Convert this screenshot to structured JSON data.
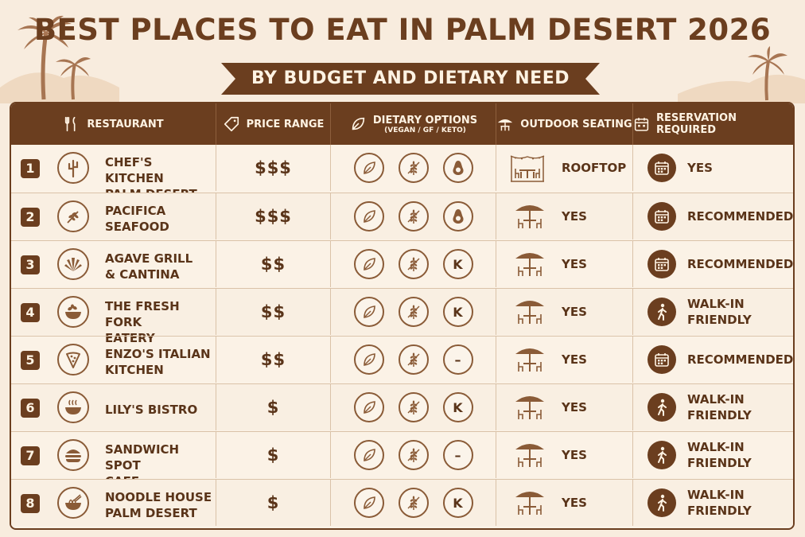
{
  "title": "BEST PLACES TO EAT IN PALM DESERT 2026",
  "subtitle": "BY BUDGET AND DIETARY NEED",
  "columns": {
    "restaurant": "RESTAURANT",
    "price": "PRICE RANGE",
    "dietary": "DIETARY OPTIONS",
    "dietary_sub": "(VEGAN / GF / KETO)",
    "outdoor": "OUTDOOR SEATING",
    "reservation": "RESERVATION REQUIRED"
  },
  "colors": {
    "brown": "#6b3e1f",
    "cream": "#f8ecde",
    "text": "#5a3419"
  },
  "rows": [
    {
      "num": "1",
      "name_1": "CHEF'S KITCHEN",
      "name_2": "PALM DESERT",
      "logo": "cactus-icon",
      "price": "$$$",
      "keto": "avocado",
      "keto_text": "",
      "outdoor_icon": "rooftop-icon",
      "outdoor": "ROOFTOP",
      "resv_icon": "calendar-icon",
      "resv_1": "YES",
      "resv_2": ""
    },
    {
      "num": "2",
      "name_1": "PACIFICA",
      "name_2": "SEAFOOD",
      "logo": "herb-icon",
      "price": "$$$",
      "keto": "avocado",
      "keto_text": "",
      "outdoor_icon": "umbrella-icon",
      "outdoor": "YES",
      "resv_icon": "calendar-icon",
      "resv_1": "RECOMMENDED",
      "resv_2": ""
    },
    {
      "num": "3",
      "name_1": "AGAVE GRILL",
      "name_2": "& CANTINA",
      "logo": "agave-icon",
      "price": "$$",
      "keto": "letter",
      "keto_text": "K",
      "outdoor_icon": "umbrella-icon",
      "outdoor": "YES",
      "resv_icon": "calendar-icon",
      "resv_1": "RECOMMENDED",
      "resv_2": ""
    },
    {
      "num": "4",
      "name_1": "THE FRESH FORK",
      "name_2": "EATERY",
      "logo": "salad-bowl-icon",
      "price": "$$",
      "keto": "letter",
      "keto_text": "K",
      "outdoor_icon": "umbrella-icon",
      "outdoor": "YES",
      "resv_icon": "walking-icon",
      "resv_1": "WALK-IN",
      "resv_2": "FRIENDLY"
    },
    {
      "num": "5",
      "name_1": "ENZO'S ITALIAN",
      "name_2": "KITCHEN",
      "logo": "pizza-icon",
      "price": "$$",
      "keto": "letter",
      "keto_text": "–",
      "outdoor_icon": "umbrella-icon",
      "outdoor": "YES",
      "resv_icon": "calendar-icon",
      "resv_1": "RECOMMENDED",
      "resv_2": ""
    },
    {
      "num": "6",
      "name_1": "LILY'S BISTRO",
      "name_2": "",
      "logo": "soup-bowl-icon",
      "price": "$",
      "keto": "letter",
      "keto_text": "K",
      "outdoor_icon": "umbrella-icon",
      "outdoor": "YES",
      "resv_icon": "walking-icon",
      "resv_1": "WALK-IN",
      "resv_2": "FRIENDLY"
    },
    {
      "num": "7",
      "name_1": "SANDWICH SPOT",
      "name_2": "CAFE",
      "logo": "burger-icon",
      "price": "$",
      "keto": "letter",
      "keto_text": "–",
      "outdoor_icon": "umbrella-icon",
      "outdoor": "YES",
      "resv_icon": "walking-icon",
      "resv_1": "WALK-IN",
      "resv_2": "FRIENDLY"
    },
    {
      "num": "8",
      "name_1": "NOODLE HOUSE",
      "name_2": "PALM DESERT",
      "logo": "noodle-bowl-icon",
      "price": "$",
      "keto": "letter",
      "keto_text": "K",
      "outdoor_icon": "umbrella-icon",
      "outdoor": "YES",
      "resv_icon": "walking-icon",
      "resv_1": "WALK-IN",
      "resv_2": "FRIENDLY"
    }
  ]
}
